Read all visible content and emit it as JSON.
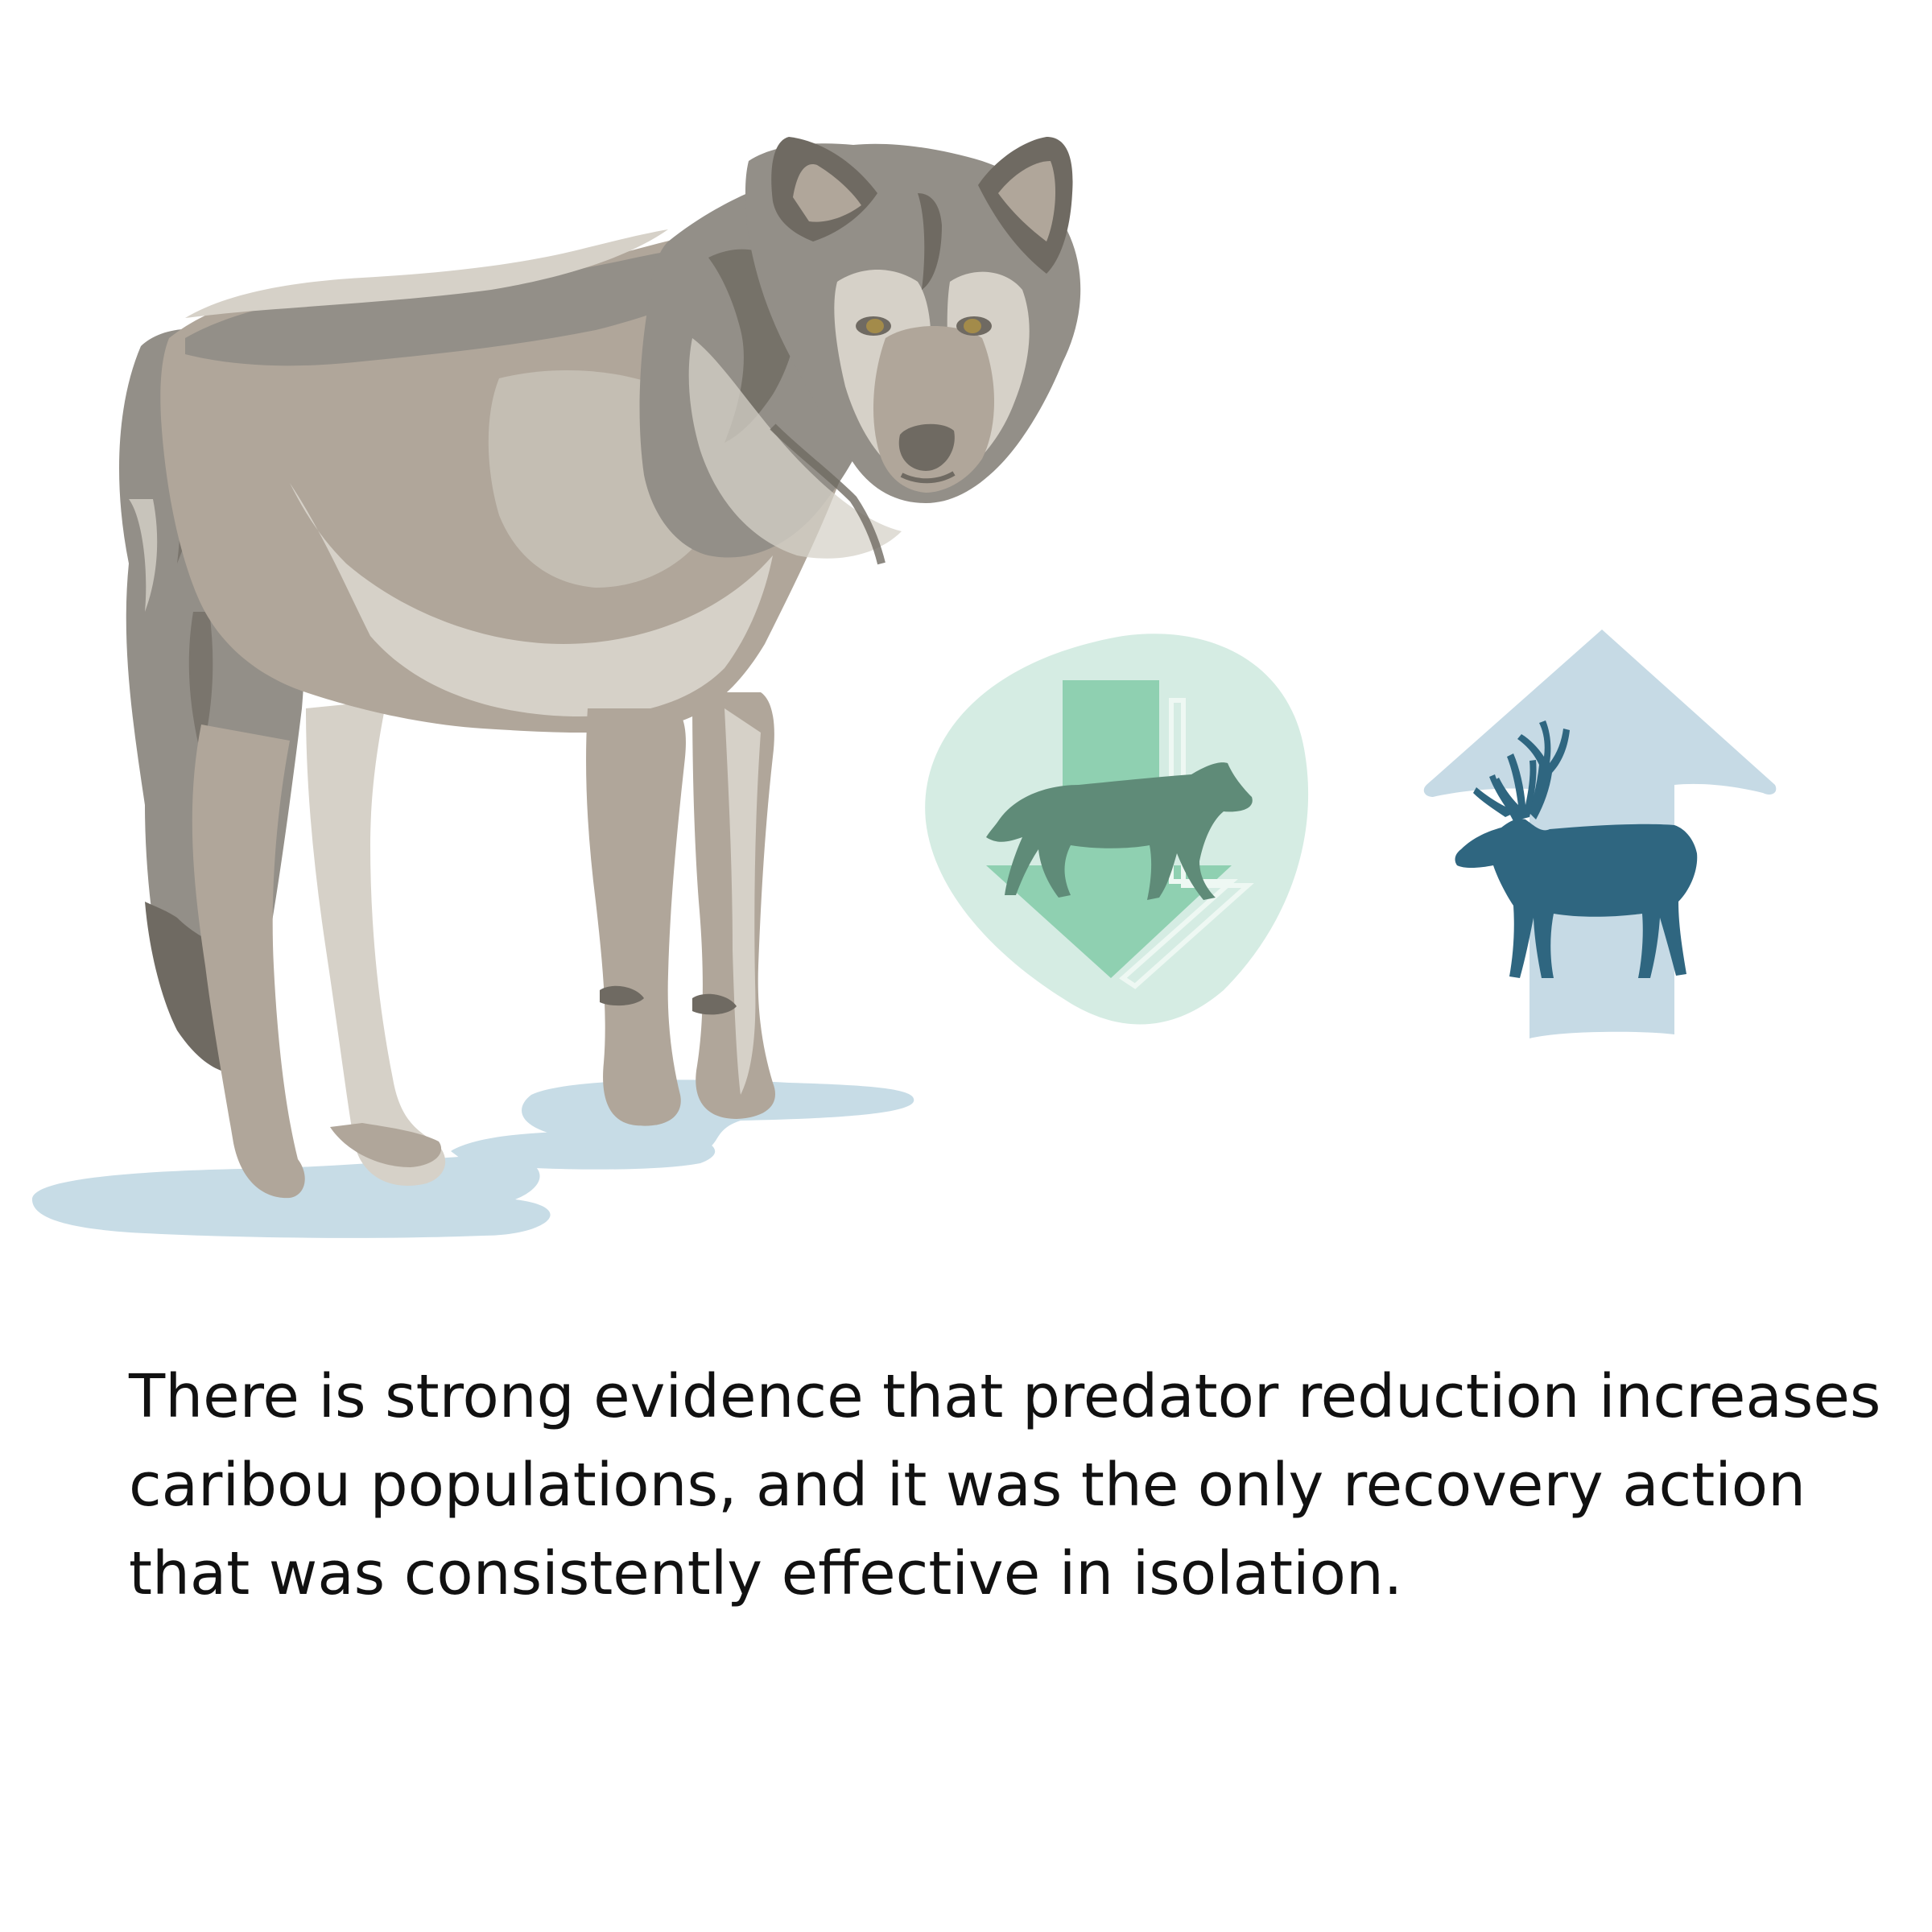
{
  "caption": {
    "lines": [
      "There is strong evidence that predator reduction increases",
      "caribou populations, and it was the only recovery action",
      "that was consistently effective in isolation."
    ]
  },
  "colors": {
    "background": "#ffffff",
    "text": "#111111",
    "wolf_fur_light": "#d6d1c8",
    "wolf_fur_mid": "#b0a69a",
    "wolf_fur_grey": "#938f88",
    "wolf_fur_dark": "#6f6a62",
    "snow_shadow": "#c7dce6",
    "predator_blob": "#d5ece3",
    "predator_arrow": "#8fd0b1",
    "predator_silhouette": "#5f8b78",
    "caribou_arrow": "#c6dae5",
    "caribou_silhouette": "#2f6680"
  },
  "icons": {
    "wolf": "wolf-illustration",
    "predator_decrease": "wolf-silhouette-down-arrow-icon",
    "caribou_increase": "caribou-silhouette-up-arrow-icon"
  }
}
